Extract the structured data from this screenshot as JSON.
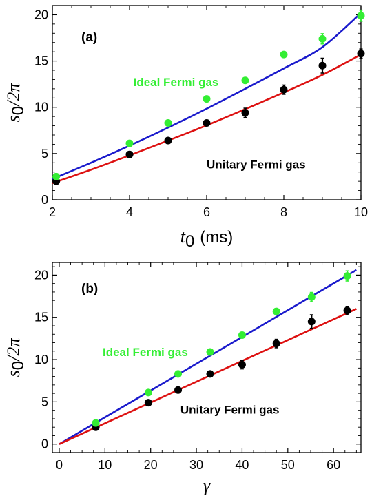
{
  "colors": {
    "ideal_points": "#33ee33",
    "unitary_points": "#000000",
    "ideal_fit": "#1a1acc",
    "unitary_fit": "#dd1111"
  },
  "chart_data": [
    {
      "type": "scatter",
      "panel_label": "(a)",
      "xlabel": "t",
      "xlabel_sub": "0",
      "xlabel_unit": "(ms)",
      "ylabel": "s",
      "ylabel_sub": "0",
      "ylabel_rest": "/2π",
      "xlim": [
        2,
        10
      ],
      "ylim": [
        0,
        21
      ],
      "xticks": [
        2,
        4,
        6,
        8,
        10
      ],
      "xtick_labels": [
        "2",
        "4",
        "6",
        "8",
        "10"
      ],
      "yticks": [
        0,
        5,
        10,
        15,
        20
      ],
      "ytick_labels": [
        "0",
        "5",
        "10",
        "15",
        "20"
      ],
      "series": [
        {
          "name": "Ideal Fermi gas",
          "x": [
            2.1,
            4,
            5,
            6,
            7,
            8,
            9,
            10
          ],
          "y": [
            2.5,
            6.1,
            8.3,
            10.9,
            12.9,
            15.7,
            17.4,
            19.9
          ],
          "yerr": [
            0.2,
            0.2,
            0.2,
            0.2,
            0.2,
            0.2,
            0.55,
            0.6
          ]
        },
        {
          "name": "Unitary Fermi gas",
          "x": [
            2.1,
            4,
            5,
            6,
            7,
            8,
            9,
            10
          ],
          "y": [
            2.0,
            4.9,
            6.4,
            8.3,
            9.4,
            11.9,
            14.5,
            15.8
          ],
          "yerr": [
            0.2,
            0.2,
            0.2,
            0.2,
            0.5,
            0.5,
            0.8,
            0.5
          ]
        }
      ],
      "fits": [
        {
          "name": "Ideal fit",
          "x": [
            2,
            3,
            4,
            5,
            6,
            7,
            8,
            9,
            10
          ],
          "y": [
            2.25,
            4.0,
            5.85,
            7.8,
            9.85,
            12.0,
            14.2,
            16.5,
            20.2
          ]
        },
        {
          "name": "Unitary fit",
          "x": [
            2,
            3,
            4,
            5,
            6,
            7,
            8,
            9,
            10
          ],
          "y": [
            1.8,
            3.25,
            4.8,
            6.4,
            8.05,
            9.8,
            11.6,
            13.5,
            15.7
          ]
        }
      ],
      "annotations": [
        {
          "text": "Ideal Fermi gas",
          "x": 4.1,
          "y": 12.3,
          "series": 0
        },
        {
          "text": "Unitary Fermi gas",
          "x": 6.0,
          "y": 3.4,
          "series": 1
        }
      ]
    },
    {
      "type": "scatter",
      "panel_label": "(b)",
      "xlabel": "γ",
      "ylabel": "s",
      "ylabel_sub": "0",
      "ylabel_rest": "/2π",
      "xlim": [
        -1.5,
        66
      ],
      "ylim": [
        -1,
        21.5
      ],
      "xticks": [
        0,
        10,
        20,
        30,
        40,
        50,
        60
      ],
      "xtick_labels": [
        "0",
        "10",
        "20",
        "30",
        "40",
        "50",
        "60"
      ],
      "yticks": [
        0,
        5,
        10,
        15,
        20
      ],
      "ytick_labels": [
        "0",
        "5",
        "10",
        "15",
        "20"
      ],
      "series": [
        {
          "name": "Ideal Fermi gas",
          "x": [
            8,
            19.5,
            26,
            33,
            40,
            47.5,
            55.2,
            63
          ],
          "y": [
            2.5,
            6.1,
            8.3,
            10.9,
            12.9,
            15.7,
            17.4,
            19.9
          ],
          "yerr": [
            0.2,
            0.2,
            0.2,
            0.2,
            0.2,
            0.2,
            0.55,
            0.6
          ]
        },
        {
          "name": "Unitary Fermi gas",
          "x": [
            8,
            19.5,
            26,
            33,
            40,
            47.5,
            55.2,
            63
          ],
          "y": [
            2.0,
            4.9,
            6.4,
            8.3,
            9.4,
            11.9,
            14.5,
            15.8
          ],
          "yerr": [
            0.2,
            0.2,
            0.2,
            0.2,
            0.5,
            0.5,
            0.8,
            0.5
          ]
        }
      ],
      "fits": [
        {
          "name": "Ideal fit",
          "x": [
            0,
            65
          ],
          "y": [
            0,
            20.6
          ]
        },
        {
          "name": "Unitary fit",
          "x": [
            0,
            65
          ],
          "y": [
            0,
            16.0
          ]
        }
      ],
      "annotations": [
        {
          "text": "Ideal Fermi gas",
          "x": 9.5,
          "y": 10.4,
          "series": 0
        },
        {
          "text": "Unitary Fermi gas",
          "x": 26.5,
          "y": 3.6,
          "series": 1
        }
      ]
    }
  ]
}
